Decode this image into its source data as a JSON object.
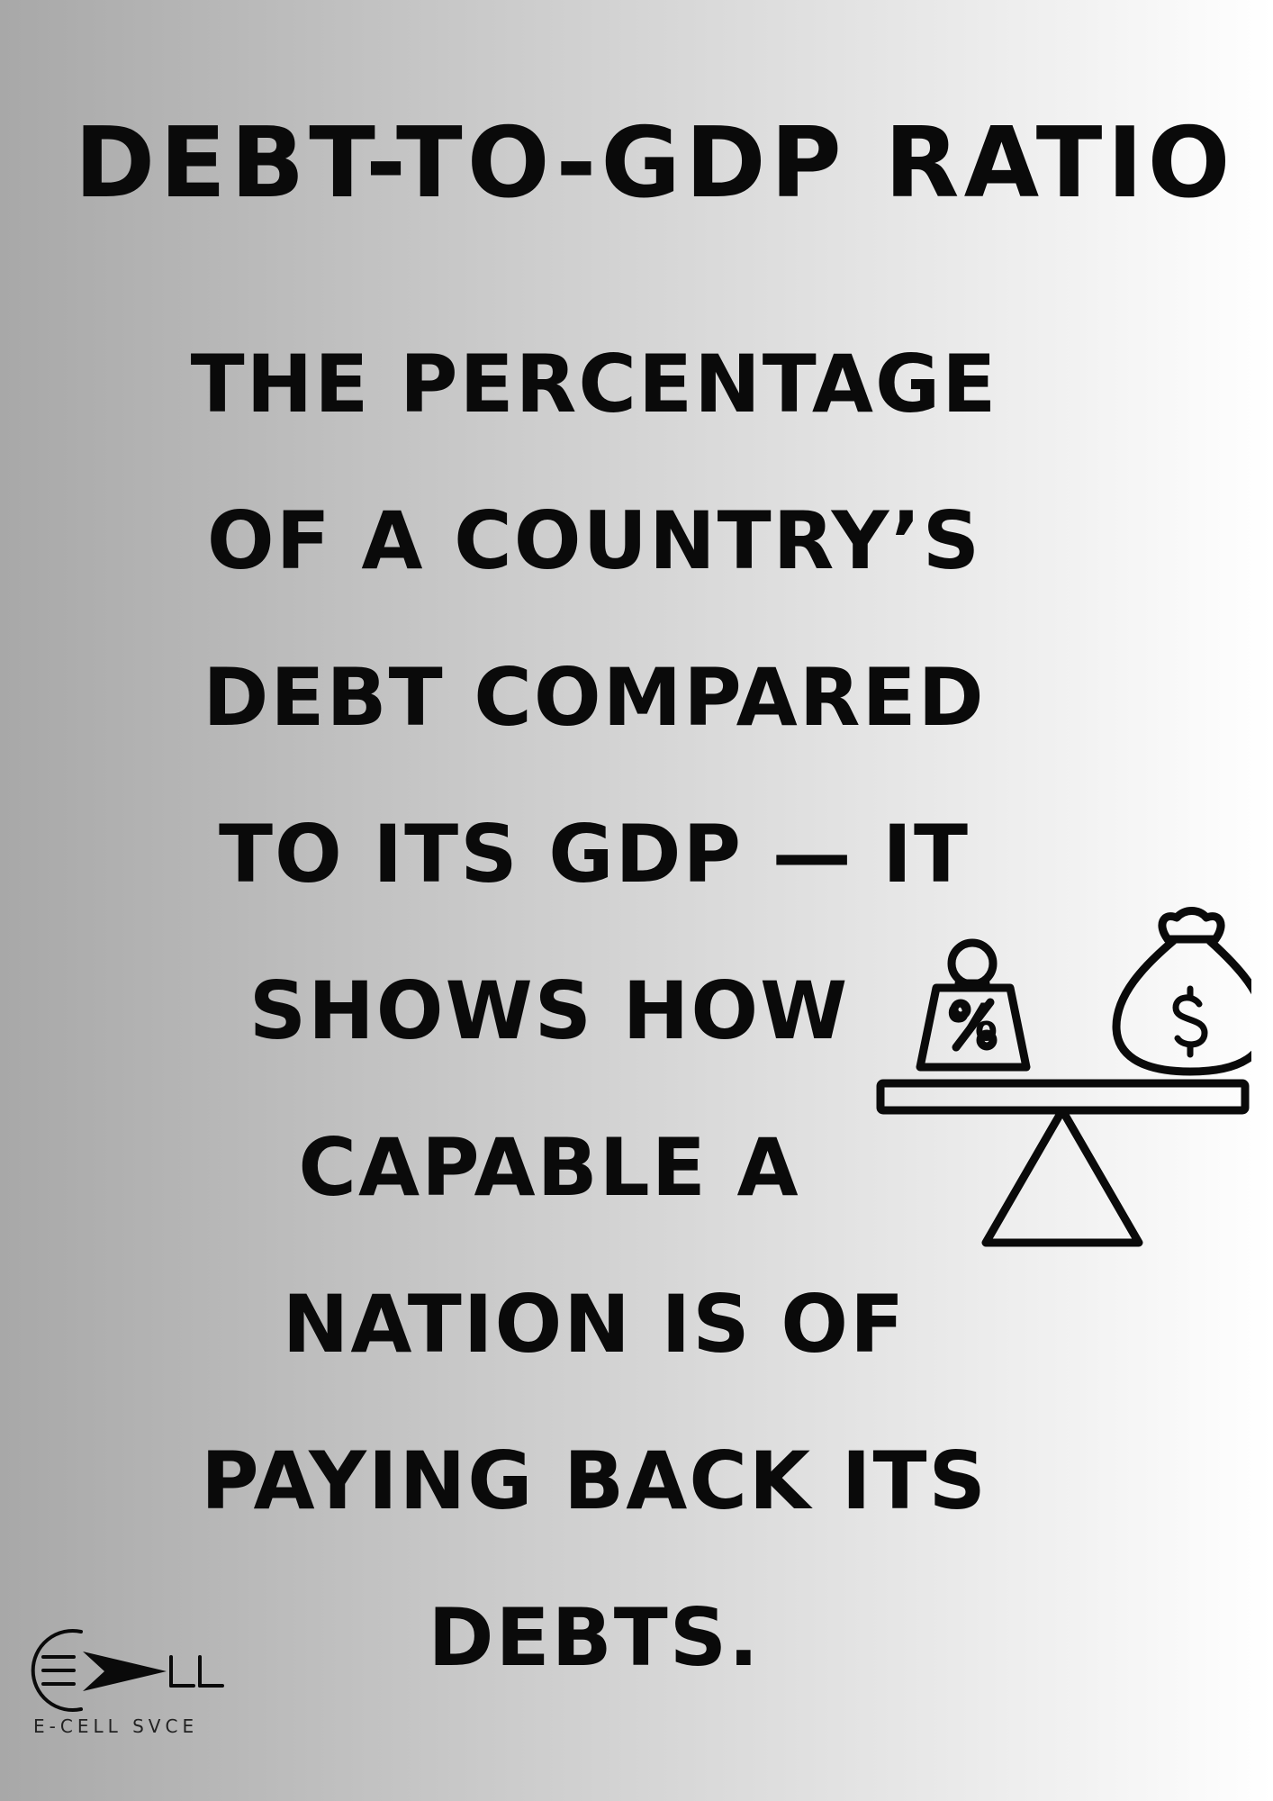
{
  "poster": {
    "title": "DEBT-TO-GDP RATIO",
    "body_lines": [
      "THE PERCENTAGE",
      "OF A COUNTRY’S",
      "DEBT COMPARED",
      "TO ITS GDP — IT",
      "SHOWS HOW",
      "CAPABLE A",
      "NATION IS OF",
      "PAYING BACK ITS",
      "DEBTS."
    ],
    "background_gradient": [
      "#a8a8a8",
      "#ffffff"
    ],
    "text_color": "#0a0a0a"
  },
  "illustration": {
    "icon": "balance-scale-icon",
    "left_weight_symbol": "%",
    "right_bag_symbol": "$"
  },
  "logo": {
    "icon": "ecell-arrow-logo-icon",
    "caption": "E-CELL SVCE"
  }
}
